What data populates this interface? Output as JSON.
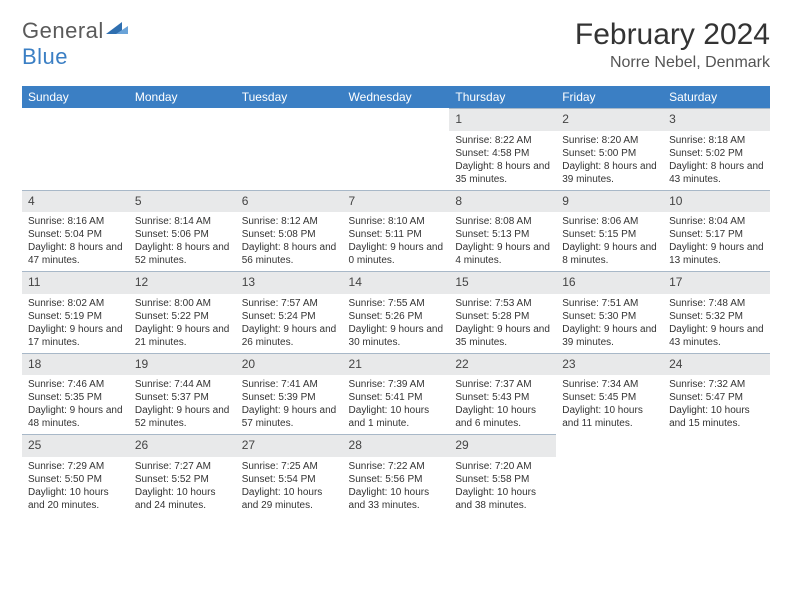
{
  "brand": {
    "word1": "General",
    "word2": "Blue"
  },
  "title": "February 2024",
  "location": "Norre Nebel, Denmark",
  "header_bg": "#3b7fc4",
  "weekdays": [
    "Sunday",
    "Monday",
    "Tuesday",
    "Wednesday",
    "Thursday",
    "Friday",
    "Saturday"
  ],
  "fonts": {
    "title_pt": 30,
    "location_pt": 16,
    "weekday_pt": 12,
    "daynum_pt": 12,
    "body_pt": 10
  },
  "colors": {
    "header_bg": "#3b7fc4",
    "header_fg": "#ffffff",
    "daynum_bg": "#e8e9ea",
    "border": "#a8b8c8",
    "text": "#333333"
  },
  "weeks": [
    [
      null,
      null,
      null,
      null,
      {
        "n": "1",
        "sunrise": "8:22 AM",
        "sunset": "4:58 PM",
        "daylight": "8 hours and 35 minutes."
      },
      {
        "n": "2",
        "sunrise": "8:20 AM",
        "sunset": "5:00 PM",
        "daylight": "8 hours and 39 minutes."
      },
      {
        "n": "3",
        "sunrise": "8:18 AM",
        "sunset": "5:02 PM",
        "daylight": "8 hours and 43 minutes."
      }
    ],
    [
      {
        "n": "4",
        "sunrise": "8:16 AM",
        "sunset": "5:04 PM",
        "daylight": "8 hours and 47 minutes."
      },
      {
        "n": "5",
        "sunrise": "8:14 AM",
        "sunset": "5:06 PM",
        "daylight": "8 hours and 52 minutes."
      },
      {
        "n": "6",
        "sunrise": "8:12 AM",
        "sunset": "5:08 PM",
        "daylight": "8 hours and 56 minutes."
      },
      {
        "n": "7",
        "sunrise": "8:10 AM",
        "sunset": "5:11 PM",
        "daylight": "9 hours and 0 minutes."
      },
      {
        "n": "8",
        "sunrise": "8:08 AM",
        "sunset": "5:13 PM",
        "daylight": "9 hours and 4 minutes."
      },
      {
        "n": "9",
        "sunrise": "8:06 AM",
        "sunset": "5:15 PM",
        "daylight": "9 hours and 8 minutes."
      },
      {
        "n": "10",
        "sunrise": "8:04 AM",
        "sunset": "5:17 PM",
        "daylight": "9 hours and 13 minutes."
      }
    ],
    [
      {
        "n": "11",
        "sunrise": "8:02 AM",
        "sunset": "5:19 PM",
        "daylight": "9 hours and 17 minutes."
      },
      {
        "n": "12",
        "sunrise": "8:00 AM",
        "sunset": "5:22 PM",
        "daylight": "9 hours and 21 minutes."
      },
      {
        "n": "13",
        "sunrise": "7:57 AM",
        "sunset": "5:24 PM",
        "daylight": "9 hours and 26 minutes."
      },
      {
        "n": "14",
        "sunrise": "7:55 AM",
        "sunset": "5:26 PM",
        "daylight": "9 hours and 30 minutes."
      },
      {
        "n": "15",
        "sunrise": "7:53 AM",
        "sunset": "5:28 PM",
        "daylight": "9 hours and 35 minutes."
      },
      {
        "n": "16",
        "sunrise": "7:51 AM",
        "sunset": "5:30 PM",
        "daylight": "9 hours and 39 minutes."
      },
      {
        "n": "17",
        "sunrise": "7:48 AM",
        "sunset": "5:32 PM",
        "daylight": "9 hours and 43 minutes."
      }
    ],
    [
      {
        "n": "18",
        "sunrise": "7:46 AM",
        "sunset": "5:35 PM",
        "daylight": "9 hours and 48 minutes."
      },
      {
        "n": "19",
        "sunrise": "7:44 AM",
        "sunset": "5:37 PM",
        "daylight": "9 hours and 52 minutes."
      },
      {
        "n": "20",
        "sunrise": "7:41 AM",
        "sunset": "5:39 PM",
        "daylight": "9 hours and 57 minutes."
      },
      {
        "n": "21",
        "sunrise": "7:39 AM",
        "sunset": "5:41 PM",
        "daylight": "10 hours and 1 minute."
      },
      {
        "n": "22",
        "sunrise": "7:37 AM",
        "sunset": "5:43 PM",
        "daylight": "10 hours and 6 minutes."
      },
      {
        "n": "23",
        "sunrise": "7:34 AM",
        "sunset": "5:45 PM",
        "daylight": "10 hours and 11 minutes."
      },
      {
        "n": "24",
        "sunrise": "7:32 AM",
        "sunset": "5:47 PM",
        "daylight": "10 hours and 15 minutes."
      }
    ],
    [
      {
        "n": "25",
        "sunrise": "7:29 AM",
        "sunset": "5:50 PM",
        "daylight": "10 hours and 20 minutes."
      },
      {
        "n": "26",
        "sunrise": "7:27 AM",
        "sunset": "5:52 PM",
        "daylight": "10 hours and 24 minutes."
      },
      {
        "n": "27",
        "sunrise": "7:25 AM",
        "sunset": "5:54 PM",
        "daylight": "10 hours and 29 minutes."
      },
      {
        "n": "28",
        "sunrise": "7:22 AM",
        "sunset": "5:56 PM",
        "daylight": "10 hours and 33 minutes."
      },
      {
        "n": "29",
        "sunrise": "7:20 AM",
        "sunset": "5:58 PM",
        "daylight": "10 hours and 38 minutes."
      },
      null,
      null
    ]
  ]
}
